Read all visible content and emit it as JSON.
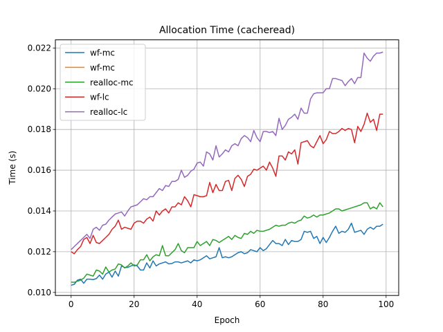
{
  "chart_data": {
    "type": "line",
    "title": "Allocation Time (cacheread)",
    "xlabel": "Epoch",
    "ylabel": "Time (s)",
    "xlim": [
      -5,
      104
    ],
    "ylim": [
      0.00985,
      0.0224
    ],
    "xticks": [
      0,
      20,
      40,
      60,
      80,
      100
    ],
    "yticks": [
      0.01,
      0.012,
      0.014,
      0.016,
      0.018,
      0.02,
      0.022
    ],
    "xtick_labels": [
      "0",
      "20",
      "40",
      "60",
      "80",
      "100"
    ],
    "ytick_labels": [
      "0.010",
      "0.012",
      "0.014",
      "0.016",
      "0.018",
      "0.020",
      "0.022"
    ],
    "grid": true,
    "legend_position": "top-left",
    "series": [
      {
        "name": "wf-mc",
        "color": "#1f77b4",
        "x": [
          0,
          1,
          2,
          3,
          4,
          5,
          6,
          7,
          8,
          9,
          10,
          11,
          12,
          13,
          14,
          15,
          16,
          17,
          18,
          19,
          20,
          21,
          22,
          23,
          24,
          25,
          26,
          27,
          28,
          29,
          30,
          31,
          32,
          33,
          34,
          35,
          36,
          37,
          38,
          39,
          40,
          41,
          42,
          43,
          44,
          45,
          46,
          47,
          48,
          49,
          50,
          51,
          52,
          53,
          54,
          55,
          56,
          57,
          58,
          59,
          60,
          61,
          62,
          63,
          64,
          65,
          66,
          67,
          68,
          69,
          70,
          71,
          72,
          73,
          74,
          75,
          76,
          77,
          78,
          79,
          80,
          81,
          82,
          83,
          84,
          85,
          86,
          87,
          88,
          89,
          90,
          91,
          92,
          93,
          94,
          95,
          96,
          97,
          98,
          99
        ],
        "y": [
          0.01035,
          0.0104,
          0.0106,
          0.01065,
          0.01045,
          0.01065,
          0.01065,
          0.01063,
          0.01068,
          0.01085,
          0.01065,
          0.0109,
          0.011,
          0.01075,
          0.01105,
          0.0108,
          0.0113,
          0.01122,
          0.01123,
          0.0113,
          0.01135,
          0.0113,
          0.0111,
          0.0111,
          0.01145,
          0.0112,
          0.01155,
          0.0113,
          0.0114,
          0.01145,
          0.0115,
          0.0114,
          0.01142,
          0.0115,
          0.0115,
          0.01145,
          0.0115,
          0.01155,
          0.01145,
          0.0116,
          0.01155,
          0.0116,
          0.0117,
          0.0118,
          0.01165,
          0.0117,
          0.01175,
          0.0122,
          0.0117,
          0.01175,
          0.0117,
          0.01175,
          0.01185,
          0.01195,
          0.012,
          0.0119,
          0.01195,
          0.0121,
          0.01205,
          0.012,
          0.0122,
          0.01205,
          0.01215,
          0.01235,
          0.01255,
          0.0124,
          0.0124,
          0.0123,
          0.0126,
          0.01235,
          0.01255,
          0.0125,
          0.0125,
          0.0126,
          0.013,
          0.01295,
          0.013,
          0.01265,
          0.01275,
          0.0124,
          0.0127,
          0.01245,
          0.0127,
          0.013,
          0.01325,
          0.0129,
          0.013,
          0.01295,
          0.0131,
          0.0134,
          0.01295,
          0.013,
          0.01305,
          0.01285,
          0.0131,
          0.0132,
          0.0131,
          0.01325,
          0.01325,
          0.01335
        ]
      },
      {
        "name": "wf-mc",
        "color": "#ff7f0e",
        "x": [],
        "y": []
      },
      {
        "name": "realloc-mc",
        "color": "#2ca02c",
        "x": [
          0,
          1,
          2,
          3,
          4,
          5,
          6,
          7,
          8,
          9,
          10,
          11,
          12,
          13,
          14,
          15,
          16,
          17,
          18,
          19,
          20,
          21,
          22,
          23,
          24,
          25,
          26,
          27,
          28,
          29,
          30,
          31,
          32,
          33,
          34,
          35,
          36,
          37,
          38,
          39,
          40,
          41,
          42,
          43,
          44,
          45,
          46,
          47,
          48,
          49,
          50,
          51,
          52,
          53,
          54,
          55,
          56,
          57,
          58,
          59,
          60,
          61,
          62,
          63,
          64,
          65,
          66,
          67,
          68,
          69,
          70,
          71,
          72,
          73,
          74,
          75,
          76,
          77,
          78,
          79,
          80,
          81,
          82,
          83,
          84,
          85,
          86,
          87,
          88,
          89,
          90,
          91,
          92,
          93,
          94,
          95,
          96,
          97,
          98,
          99
        ],
        "y": [
          0.0105,
          0.0105,
          0.01055,
          0.0106,
          0.0107,
          0.0109,
          0.01085,
          0.0108,
          0.0111,
          0.01105,
          0.0109,
          0.01125,
          0.011,
          0.0111,
          0.01115,
          0.0114,
          0.01135,
          0.0112,
          0.0113,
          0.01145,
          0.0113,
          0.01135,
          0.0116,
          0.0116,
          0.01185,
          0.01155,
          0.01175,
          0.01185,
          0.0118,
          0.0123,
          0.0118,
          0.0118,
          0.01195,
          0.0121,
          0.0124,
          0.01205,
          0.01195,
          0.0122,
          0.0122,
          0.0122,
          0.0125,
          0.0123,
          0.0124,
          0.0125,
          0.0123,
          0.0126,
          0.01255,
          0.01245,
          0.01255,
          0.01265,
          0.01275,
          0.0126,
          0.0128,
          0.0127,
          0.01265,
          0.0129,
          0.01285,
          0.013,
          0.0129,
          0.01305,
          0.013,
          0.013,
          0.01305,
          0.0131,
          0.0132,
          0.0133,
          0.01325,
          0.0133,
          0.0133,
          0.0134,
          0.01345,
          0.0134,
          0.0135,
          0.01355,
          0.01375,
          0.01365,
          0.0137,
          0.0138,
          0.0137,
          0.0138,
          0.0138,
          0.01385,
          0.0139,
          0.014,
          0.0141,
          0.0141,
          0.014,
          0.01405,
          0.0141,
          0.01415,
          0.0142,
          0.01425,
          0.0143,
          0.0144,
          0.0144,
          0.0141,
          0.0142,
          0.0141,
          0.0144,
          0.0142
        ]
      },
      {
        "name": "wf-lc",
        "color": "#d62728",
        "x": [
          0,
          1,
          2,
          3,
          4,
          5,
          6,
          7,
          8,
          9,
          10,
          11,
          12,
          13,
          14,
          15,
          16,
          17,
          18,
          19,
          20,
          21,
          22,
          23,
          24,
          25,
          26,
          27,
          28,
          29,
          30,
          31,
          32,
          33,
          34,
          35,
          36,
          37,
          38,
          39,
          40,
          41,
          42,
          43,
          44,
          45,
          46,
          47,
          48,
          49,
          50,
          51,
          52,
          53,
          54,
          55,
          56,
          57,
          58,
          59,
          60,
          61,
          62,
          63,
          64,
          65,
          66,
          67,
          68,
          69,
          70,
          71,
          72,
          73,
          74,
          75,
          76,
          77,
          78,
          79,
          80,
          81,
          82,
          83,
          84,
          85,
          86,
          87,
          88,
          89,
          90,
          91,
          92,
          93,
          94,
          95,
          96,
          97,
          98,
          99
        ],
        "y": [
          0.012,
          0.0119,
          0.0121,
          0.01225,
          0.0126,
          0.0127,
          0.0124,
          0.0128,
          0.01245,
          0.0124,
          0.01255,
          0.0127,
          0.01285,
          0.0131,
          0.01325,
          0.01355,
          0.0131,
          0.0132,
          0.01315,
          0.0131,
          0.0134,
          0.0135,
          0.0135,
          0.0134,
          0.0136,
          0.0137,
          0.0135,
          0.014,
          0.0138,
          0.014,
          0.0141,
          0.0139,
          0.0142,
          0.0142,
          0.0144,
          0.0143,
          0.0147,
          0.0145,
          0.0142,
          0.0148,
          0.01475,
          0.0147,
          0.0147,
          0.01475,
          0.0154,
          0.0149,
          0.0153,
          0.015,
          0.015,
          0.01545,
          0.0155,
          0.015,
          0.0156,
          0.01575,
          0.01555,
          0.0152,
          0.0157,
          0.0158,
          0.01605,
          0.016,
          0.0161,
          0.0162,
          0.016,
          0.0164,
          0.0161,
          0.0157,
          0.0167,
          0.0167,
          0.0165,
          0.0169,
          0.0168,
          0.017,
          0.0163,
          0.01735,
          0.0174,
          0.01745,
          0.0172,
          0.0171,
          0.0174,
          0.0177,
          0.0173,
          0.0175,
          0.0179,
          0.0178,
          0.0178,
          0.0179,
          0.01805,
          0.01795,
          0.01805,
          0.018,
          0.01735,
          0.01815,
          0.0179,
          0.01825,
          0.0188,
          0.01835,
          0.0185,
          0.01795,
          0.01875,
          0.01875
        ]
      },
      {
        "name": "realloc-lc",
        "color": "#9467bd",
        "x": [
          0,
          1,
          2,
          3,
          4,
          5,
          6,
          7,
          8,
          9,
          10,
          11,
          12,
          13,
          14,
          15,
          16,
          17,
          18,
          19,
          20,
          21,
          22,
          23,
          24,
          25,
          26,
          27,
          28,
          29,
          30,
          31,
          32,
          33,
          34,
          35,
          36,
          37,
          38,
          39,
          40,
          41,
          42,
          43,
          44,
          45,
          46,
          47,
          48,
          49,
          50,
          51,
          52,
          53,
          54,
          55,
          56,
          57,
          58,
          59,
          60,
          61,
          62,
          63,
          64,
          65,
          66,
          67,
          68,
          69,
          70,
          71,
          72,
          73,
          74,
          75,
          76,
          77,
          78,
          79,
          80,
          81,
          82,
          83,
          84,
          85,
          86,
          87,
          88,
          89,
          90,
          91,
          92,
          93,
          94,
          95,
          96,
          97,
          98,
          99
        ],
        "y": [
          0.0121,
          0.01225,
          0.0124,
          0.01255,
          0.0127,
          0.01285,
          0.01265,
          0.0131,
          0.0132,
          0.01305,
          0.0133,
          0.01335,
          0.01355,
          0.0137,
          0.01385,
          0.0139,
          0.01395,
          0.01375,
          0.014,
          0.0142,
          0.01425,
          0.0143,
          0.01445,
          0.0146,
          0.01455,
          0.0147,
          0.0147,
          0.0149,
          0.0151,
          0.015,
          0.01525,
          0.0152,
          0.01545,
          0.01545,
          0.01555,
          0.016,
          0.01565,
          0.01575,
          0.01595,
          0.01605,
          0.01635,
          0.0164,
          0.0162,
          0.0169,
          0.0168,
          0.0165,
          0.0172,
          0.01665,
          0.0168,
          0.017,
          0.0169,
          0.0172,
          0.0173,
          0.0172,
          0.01755,
          0.0177,
          0.0176,
          0.0174,
          0.01795,
          0.0176,
          0.0174,
          0.0179,
          0.0179,
          0.01785,
          0.0179,
          0.0177,
          0.01855,
          0.018,
          0.0182,
          0.0185,
          0.0186,
          0.01875,
          0.0185,
          0.01905,
          0.0188,
          0.0188,
          0.0195,
          0.01975,
          0.0198,
          0.0198,
          0.0198,
          0.02,
          0.02,
          0.0205,
          0.0205,
          0.02045,
          0.0204,
          0.02015,
          0.02035,
          0.0205,
          0.02025,
          0.02055,
          0.02055,
          0.02175,
          0.0215,
          0.02135,
          0.0216,
          0.02175,
          0.02175,
          0.0218
        ]
      }
    ]
  }
}
